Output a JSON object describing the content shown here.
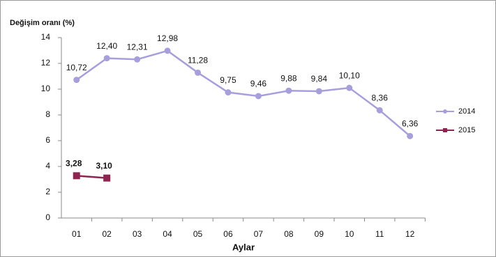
{
  "chart_data": {
    "type": "line",
    "y_label": "Değişim oranı (%)",
    "x_label": "Aylar",
    "categories": [
      "01",
      "02",
      "03",
      "04",
      "05",
      "06",
      "07",
      "08",
      "09",
      "10",
      "11",
      "12"
    ],
    "series": [
      {
        "name": "2014",
        "color": "#a79fdc",
        "marker": "circle",
        "values": [
          10.72,
          12.4,
          12.31,
          12.98,
          11.28,
          9.75,
          9.46,
          9.88,
          9.84,
          10.1,
          8.36,
          6.36
        ],
        "value_labels": [
          "10,72",
          "12,40",
          "12,31",
          "12,98",
          "11,28",
          "9,75",
          "9,46",
          "9,88",
          "9,84",
          "10,10",
          "8,36",
          "6,36"
        ]
      },
      {
        "name": "2015",
        "color": "#8e2450",
        "marker": "square",
        "bold_labels": true,
        "values": [
          3.28,
          3.1,
          null,
          null,
          null,
          null,
          null,
          null,
          null,
          null,
          null,
          null
        ],
        "value_labels": [
          "3,28",
          "3,10",
          null,
          null,
          null,
          null,
          null,
          null,
          null,
          null,
          null,
          null
        ]
      }
    ],
    "ylim": [
      0,
      14
    ],
    "yticks": [
      0,
      2,
      4,
      6,
      8,
      10,
      12,
      14
    ],
    "grid": false,
    "legend": "right"
  }
}
